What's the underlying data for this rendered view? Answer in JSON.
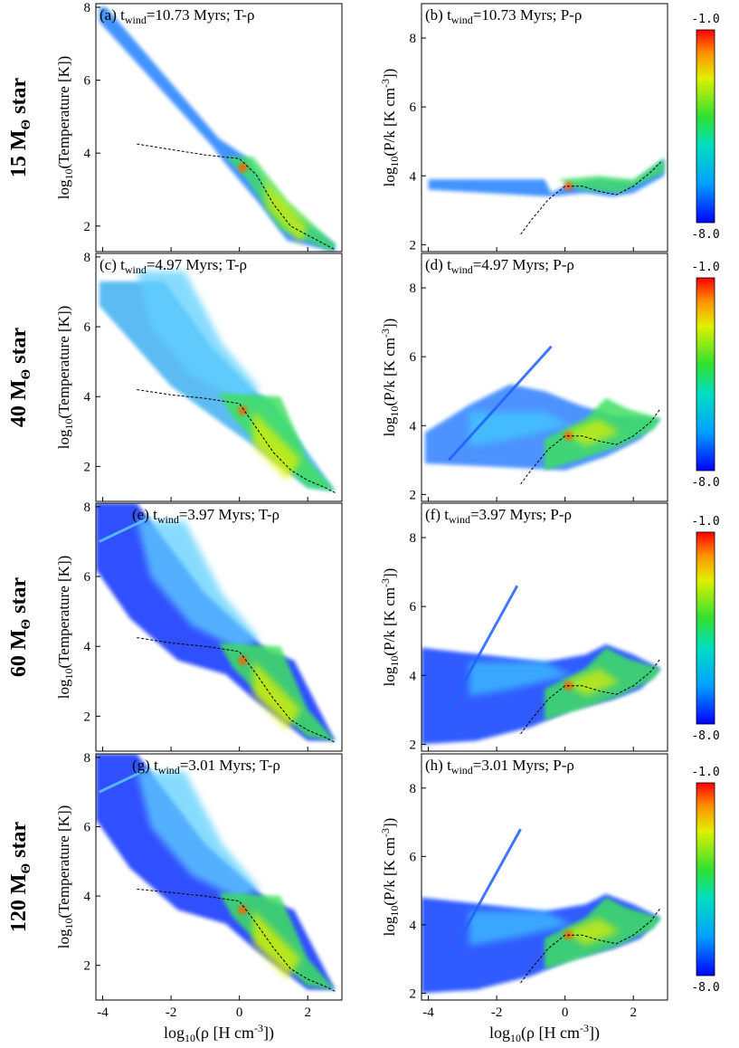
{
  "figure": {
    "row_labels": [
      {
        "main": "15 M",
        "sub": "Θ",
        "tail": " star"
      },
      {
        "main": "40 M",
        "sub": "Θ",
        "tail": " star"
      },
      {
        "main": "60 M",
        "sub": "Θ",
        "tail": " star"
      },
      {
        "main": "120 M",
        "sub": "Θ",
        "tail": " star"
      }
    ],
    "colorbar": {
      "max_label": "-1.0",
      "min_label": "-8.0",
      "range": [
        -8.0,
        -1.0
      ]
    },
    "xlabel": {
      "pre": "log",
      "sub": "10",
      "post": "(ρ [H cm",
      "sup": "-3",
      "end": "])"
    },
    "ylabel_T": {
      "pre": "log",
      "sub": "10",
      "post": "(Temperature [K])"
    },
    "ylabel_P": {
      "pre": "log",
      "sub": "10",
      "post": "(P/k [K cm",
      "sup": "-3",
      "end": "])"
    }
  },
  "chart_data": [
    {
      "type": "heatmap",
      "panel": "(a)",
      "title_pre": "(a) t",
      "title_sub": "wind",
      "title_post": "=10.73 Myrs; T-ρ",
      "xlim": [
        -4.2,
        3.0
      ],
      "ylim": [
        1.3,
        8.1
      ],
      "yticks": [
        2,
        4,
        6,
        8
      ],
      "kind": "T",
      "star": "15",
      "ref_curve": {
        "x": [
          -3.0,
          -2.0,
          -1.0,
          0.0,
          0.5,
          1.0,
          1.5,
          2.0,
          2.5,
          2.8
        ],
        "y": [
          4.25,
          4.1,
          3.95,
          3.85,
          3.4,
          2.6,
          2.0,
          1.75,
          1.5,
          1.35
        ]
      }
    },
    {
      "type": "heatmap",
      "panel": "(b)",
      "title_pre": "(b) t",
      "title_sub": "wind",
      "title_post": "=10.73 Myrs; P-ρ",
      "xlim": [
        -4.2,
        3.0
      ],
      "ylim": [
        1.8,
        9.0
      ],
      "yticks": [
        2,
        4,
        6,
        8
      ],
      "kind": "P",
      "star": "15",
      "ref_curve": {
        "x": [
          -1.3,
          -1.0,
          -0.5,
          0.0,
          0.5,
          1.0,
          1.5,
          2.0,
          2.5,
          2.8
        ],
        "y": [
          2.3,
          2.7,
          3.3,
          3.7,
          3.7,
          3.55,
          3.45,
          3.7,
          4.1,
          4.4
        ]
      }
    },
    {
      "type": "heatmap",
      "panel": "(c)",
      "title_pre": "(c) t",
      "title_sub": "wind",
      "title_post": "=4.97 Myrs; T-ρ",
      "xlim": [
        -4.2,
        3.0
      ],
      "ylim": [
        1.0,
        8.1
      ],
      "yticks": [
        2,
        4,
        6,
        8
      ],
      "kind": "T",
      "star": "40",
      "ref_curve": {
        "x": [
          -3.0,
          -2.0,
          -1.0,
          0.0,
          0.5,
          1.0,
          1.5,
          2.0,
          2.5,
          2.8
        ],
        "y": [
          4.2,
          4.05,
          3.95,
          3.8,
          3.1,
          2.4,
          1.9,
          1.6,
          1.4,
          1.25
        ]
      }
    },
    {
      "type": "heatmap",
      "panel": "(d)",
      "title_pre": "(d) t",
      "title_sub": "wind",
      "title_post": "=4.97 Myrs; P-ρ",
      "xlim": [
        -4.2,
        3.0
      ],
      "ylim": [
        1.8,
        9.0
      ],
      "yticks": [
        2,
        4,
        6,
        8
      ],
      "kind": "P",
      "star": "40",
      "ref_curve": {
        "x": [
          -1.3,
          -1.0,
          -0.5,
          0.0,
          0.5,
          1.0,
          1.5,
          2.0,
          2.5,
          2.8
        ],
        "y": [
          2.3,
          2.7,
          3.3,
          3.7,
          3.7,
          3.55,
          3.45,
          3.7,
          4.1,
          4.5
        ]
      }
    },
    {
      "type": "heatmap",
      "panel": "(e)",
      "title_pre": "(e) t",
      "title_sub": "wind",
      "title_post": "=3.97 Myrs; T-ρ",
      "xlim": [
        -4.2,
        3.0
      ],
      "ylim": [
        1.0,
        8.1
      ],
      "yticks": [
        2,
        4,
        6,
        8
      ],
      "kind": "T",
      "star": "60",
      "ref_curve": {
        "x": [
          -3.0,
          -2.0,
          -1.0,
          0.0,
          0.5,
          1.0,
          1.5,
          2.0,
          2.5,
          2.8
        ],
        "y": [
          4.25,
          4.1,
          4.0,
          3.85,
          3.2,
          2.5,
          1.9,
          1.6,
          1.4,
          1.25
        ]
      }
    },
    {
      "type": "heatmap",
      "panel": "(f)",
      "title_pre": "(f) t",
      "title_sub": "wind",
      "title_post": "=3.97 Myrs; P-ρ",
      "xlim": [
        -4.2,
        3.0
      ],
      "ylim": [
        1.8,
        9.0
      ],
      "yticks": [
        2,
        4,
        6,
        8
      ],
      "kind": "P",
      "star": "60",
      "ref_curve": {
        "x": [
          -1.3,
          -1.0,
          -0.5,
          0.0,
          0.5,
          1.0,
          1.5,
          2.0,
          2.5,
          2.8
        ],
        "y": [
          2.3,
          2.7,
          3.3,
          3.7,
          3.7,
          3.55,
          3.45,
          3.7,
          4.1,
          4.5
        ]
      }
    },
    {
      "type": "heatmap",
      "panel": "(g)",
      "title_pre": "(g) t",
      "title_sub": "wind",
      "title_post": "=3.01 Myrs; T-ρ",
      "xlim": [
        -4.2,
        3.0
      ],
      "ylim": [
        1.0,
        8.1
      ],
      "yticks": [
        2,
        4,
        6,
        8
      ],
      "kind": "T",
      "star": "120",
      "ref_curve": {
        "x": [
          -3.0,
          -2.0,
          -1.0,
          0.0,
          0.5,
          1.0,
          1.5,
          2.0,
          2.5,
          2.8
        ],
        "y": [
          4.2,
          4.1,
          4.0,
          3.85,
          3.2,
          2.5,
          1.9,
          1.6,
          1.4,
          1.25
        ]
      }
    },
    {
      "type": "heatmap",
      "panel": "(h)",
      "title_pre": "(h) t",
      "title_sub": "wind",
      "title_post": "=3.01 Myrs; P-ρ",
      "xlim": [
        -4.2,
        3.0
      ],
      "ylim": [
        1.8,
        9.0
      ],
      "yticks": [
        2,
        4,
        6,
        8
      ],
      "kind": "P",
      "star": "120",
      "ref_curve": {
        "x": [
          -1.3,
          -1.0,
          -0.5,
          0.0,
          0.5,
          1.0,
          1.5,
          2.0,
          2.5,
          2.8
        ],
        "y": [
          2.3,
          2.7,
          3.3,
          3.7,
          3.7,
          3.55,
          3.45,
          3.7,
          4.1,
          4.5
        ]
      }
    }
  ],
  "xticks": [
    -4,
    -2,
    0,
    2
  ]
}
